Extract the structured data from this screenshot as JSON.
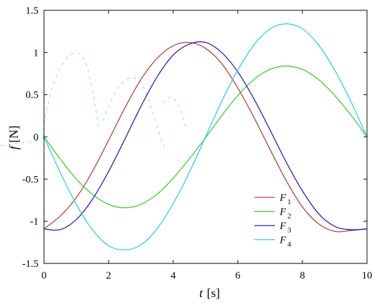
{
  "chart_data": {
    "type": "line",
    "xlim": [
      0,
      10
    ],
    "ylim": [
      -1.5,
      1.5
    ],
    "x_ticks": [
      0,
      2,
      4,
      6,
      8,
      10
    ],
    "y_ticks": [
      -1.5,
      -1,
      -0.5,
      0,
      0.5,
      1,
      1.5
    ],
    "x_tick_labels": [
      "0",
      "2",
      "4",
      "6",
      "8",
      "10"
    ],
    "y_tick_labels": [
      "-1.5",
      "-1",
      "-0.5",
      "0",
      "0.5",
      "1",
      "1.5"
    ],
    "xlabel": {
      "symbol": "t",
      "unit": "[s]"
    },
    "ylabel": {
      "symbol": "f",
      "unit": "[N]"
    },
    "grid": false,
    "legend_position": "bottom-right",
    "x": [
      0,
      0.5,
      1,
      1.5,
      2,
      2.5,
      3,
      3.5,
      4,
      4.5,
      5,
      5.5,
      6,
      6.5,
      7,
      7.5,
      8,
      8.5,
      9,
      9.5,
      10
    ],
    "series": [
      {
        "name": "F1",
        "name_base": "F",
        "name_sub": "1",
        "color": "#b5403a",
        "values": [
          -1.09,
          -0.94,
          -0.72,
          -0.41,
          -0.04,
          0.34,
          0.68,
          0.93,
          1.08,
          1.12,
          1.05,
          0.87,
          0.58,
          0.23,
          -0.15,
          -0.52,
          -0.83,
          -1.03,
          -1.12,
          -1.11,
          -1.09
        ]
      },
      {
        "name": "F2",
        "name_base": "F",
        "name_sub": "2",
        "color": "#3ccf2e",
        "values": [
          0.0,
          -0.26,
          -0.5,
          -0.68,
          -0.8,
          -0.84,
          -0.8,
          -0.68,
          -0.49,
          -0.26,
          -0.01,
          0.25,
          0.49,
          0.68,
          0.8,
          0.84,
          0.8,
          0.68,
          0.49,
          0.26,
          0.0
        ]
      },
      {
        "name": "F3",
        "name_base": "F",
        "name_sub": "3",
        "color": "#2a1bb0",
        "values": [
          -1.09,
          -1.1,
          -0.98,
          -0.74,
          -0.41,
          -0.03,
          0.36,
          0.71,
          0.97,
          1.1,
          1.12,
          1.0,
          0.77,
          0.45,
          0.08,
          -0.3,
          -0.64,
          -0.91,
          -1.06,
          -1.1,
          -1.09
        ]
      },
      {
        "name": "F4",
        "name_base": "F",
        "name_sub": "4",
        "color": "#33c8ee",
        "values": [
          0.0,
          -0.42,
          -0.8,
          -1.1,
          -1.29,
          -1.34,
          -1.28,
          -1.09,
          -0.79,
          -0.42,
          0.0,
          0.42,
          0.79,
          1.09,
          1.28,
          1.34,
          1.28,
          1.09,
          0.79,
          0.42,
          0.0
        ]
      }
    ]
  }
}
